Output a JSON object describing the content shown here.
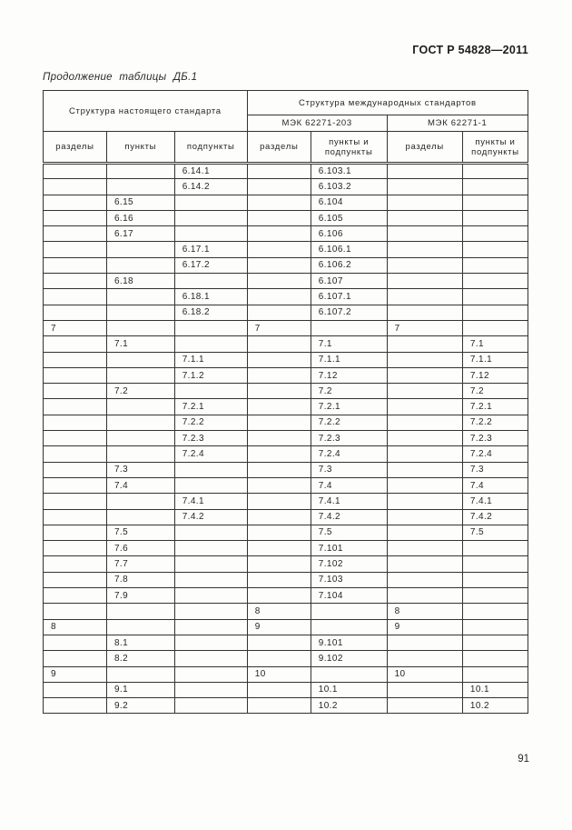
{
  "page": {
    "doc_number": "ГОСТ Р 54828—2011",
    "table_caption": "Продолжение таблицы ДБ.1",
    "page_number": "91"
  },
  "table": {
    "header": {
      "this_standard": "Структура настоящего стандарта",
      "intl_standards": "Структура международных стандартов",
      "iec_203": "МЭК 62271-203",
      "iec_1": "МЭК 62271-1",
      "col_razdely": "разделы",
      "col_punkty": "пункты",
      "col_podpunkty": "подпункты",
      "col_punkty_podpunkty": "пункты и подпункты"
    },
    "rows": [
      [
        "",
        "",
        "6.14.1",
        "",
        "6.103.1",
        "",
        ""
      ],
      [
        "",
        "",
        "6.14.2",
        "",
        "6.103.2",
        "",
        ""
      ],
      [
        "",
        "6.15",
        "",
        "",
        "6.104",
        "",
        ""
      ],
      [
        "",
        "6.16",
        "",
        "",
        "6.105",
        "",
        ""
      ],
      [
        "",
        "6.17",
        "",
        "",
        "6.106",
        "",
        ""
      ],
      [
        "",
        "",
        "6.17.1",
        "",
        "6.106.1",
        "",
        ""
      ],
      [
        "",
        "",
        "6.17.2",
        "",
        "6.106.2",
        "",
        ""
      ],
      [
        "",
        "6.18",
        "",
        "",
        "6.107",
        "",
        ""
      ],
      [
        "",
        "",
        "6.18.1",
        "",
        "6.107.1",
        "",
        ""
      ],
      [
        "",
        "",
        "6.18.2",
        "",
        "6.107.2",
        "",
        ""
      ],
      [
        "7",
        "",
        "",
        "7",
        "",
        "7",
        ""
      ],
      [
        "",
        "7.1",
        "",
        "",
        "7.1",
        "",
        "7.1"
      ],
      [
        "",
        "",
        "7.1.1",
        "",
        "7.1.1",
        "",
        "7.1.1"
      ],
      [
        "",
        "",
        "7.1.2",
        "",
        "7.12",
        "",
        "7.12"
      ],
      [
        "",
        "7.2",
        "",
        "",
        "7.2",
        "",
        "7.2"
      ],
      [
        "",
        "",
        "7.2.1",
        "",
        "7.2.1",
        "",
        "7.2.1"
      ],
      [
        "",
        "",
        "7.2.2",
        "",
        "7.2.2",
        "",
        "7.2.2"
      ],
      [
        "",
        "",
        "7.2.3",
        "",
        "7.2.3",
        "",
        "7.2.3"
      ],
      [
        "",
        "",
        "7.2.4",
        "",
        "7.2.4",
        "",
        "7.2.4"
      ],
      [
        "",
        "7.3",
        "",
        "",
        "7.3",
        "",
        "7.3"
      ],
      [
        "",
        "7.4",
        "",
        "",
        "7.4",
        "",
        "7.4"
      ],
      [
        "",
        "",
        "7.4.1",
        "",
        "7.4.1",
        "",
        "7.4.1"
      ],
      [
        "",
        "",
        "7.4.2",
        "",
        "7.4.2",
        "",
        "7.4.2"
      ],
      [
        "",
        "7.5",
        "",
        "",
        "7.5",
        "",
        "7.5"
      ],
      [
        "",
        "7.6",
        "",
        "",
        "7.101",
        "",
        ""
      ],
      [
        "",
        "7.7",
        "",
        "",
        "7.102",
        "",
        ""
      ],
      [
        "",
        "7.8",
        "",
        "",
        "7.103",
        "",
        ""
      ],
      [
        "",
        "7.9",
        "",
        "",
        "7.104",
        "",
        ""
      ],
      [
        "",
        "",
        "",
        "8",
        "",
        "8",
        ""
      ],
      [
        "8",
        "",
        "",
        "9",
        "",
        "9",
        ""
      ],
      [
        "",
        "8.1",
        "",
        "",
        "9.101",
        "",
        ""
      ],
      [
        "",
        "8.2",
        "",
        "",
        "9.102",
        "",
        ""
      ],
      [
        "9",
        "",
        "",
        "10",
        "",
        "10",
        ""
      ],
      [
        "",
        "9.1",
        "",
        "",
        "10.1",
        "",
        "10.1"
      ],
      [
        "",
        "9.2",
        "",
        "",
        "10.2",
        "",
        "10.2"
      ]
    ]
  }
}
